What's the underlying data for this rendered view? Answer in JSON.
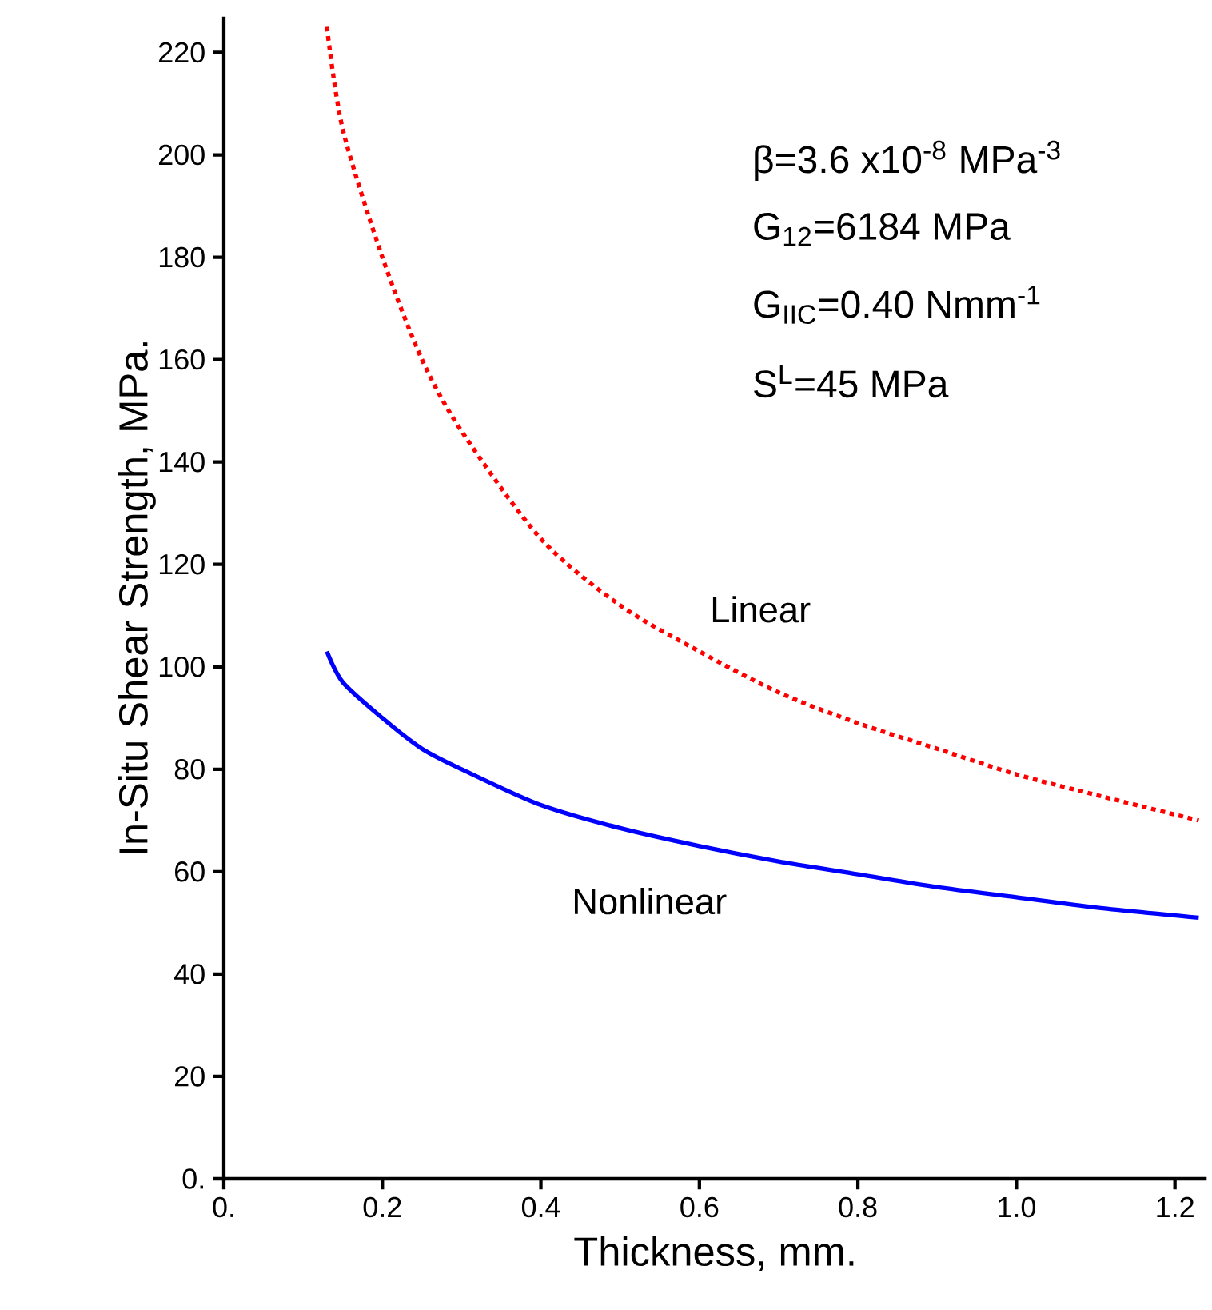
{
  "chart_data": {
    "type": "line",
    "xlabel": "Thickness, mm.",
    "ylabel": "In-Situ Shear Strength,  MPa.",
    "xlim": [
      0,
      1.24
    ],
    "ylim": [
      0,
      227
    ],
    "xticks": [
      {
        "value": 0,
        "label": "0."
      },
      0.2,
      0.4,
      0.6,
      0.8,
      {
        "value": 1.0,
        "label": "1.0"
      },
      1.2
    ],
    "yticks": [
      {
        "value": 0,
        "label": "0."
      },
      20,
      40,
      60,
      80,
      100,
      120,
      140,
      160,
      180,
      200,
      220
    ],
    "grid": false,
    "marker": "none",
    "series": [
      {
        "color": "#ff0000",
        "line_style": "dotted",
        "x": [
          0.13,
          0.15,
          0.2,
          0.25,
          0.3,
          0.4,
          0.5,
          0.6,
          0.7,
          0.8,
          0.9,
          1.0,
          1.1,
          1.23
        ],
        "values": [
          225,
          205,
          180,
          160,
          146,
          125,
          112,
          103,
          95,
          89,
          84,
          79,
          75,
          70
        ]
      },
      {
        "color": "#0000ff",
        "line_style": "solid",
        "x": [
          0.13,
          0.15,
          0.2,
          0.25,
          0.3,
          0.4,
          0.5,
          0.6,
          0.7,
          0.8,
          0.9,
          1.0,
          1.1,
          1.23
        ],
        "values": [
          103,
          97,
          90,
          84,
          80,
          73,
          68.5,
          65,
          62,
          59.5,
          57,
          55,
          53,
          51
        ]
      }
    ],
    "annotations": [
      "β=3.6 x10$^{-8}$  MPa$^{-3}$",
      "G$_{12}$=6184 MPa",
      "G$_{IIC}$=0.40 Nmm$^{-1}$",
      "S$^{L}$=45 MPa",
      "Linear",
      "Nonlinear"
    ]
  }
}
